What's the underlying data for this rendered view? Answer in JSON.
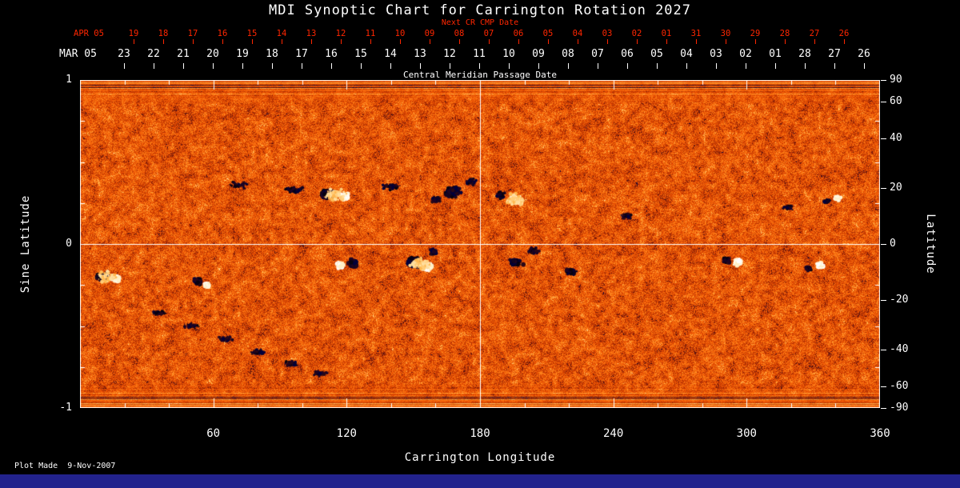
{
  "footer": {
    "plot_made": "Plot Made  9-Nov-2007"
  },
  "chart_data": {
    "type": "heatmap",
    "title": "MDI Synoptic Chart for Carrington Rotation 2027",
    "rotation": 2027,
    "xlabel": "Carrington Longitude",
    "ylabel_left": "Sine Latitude",
    "ylabel_right": "Latitude",
    "xlim": [
      0,
      360
    ],
    "ylim": [
      -1,
      1
    ],
    "x_ticks": [
      60,
      120,
      180,
      240,
      300,
      360
    ],
    "x_minor_step": 20,
    "left_ticks": [
      "1",
      "0",
      "-1"
    ],
    "left_tick_values": [
      1,
      0,
      -1
    ],
    "right_ticks": [
      90,
      60,
      40,
      20,
      0,
      -20,
      -40,
      -60,
      -90
    ],
    "crosshair": {
      "longitude": 180,
      "sine_latitude": 0
    },
    "top_axis_red": {
      "label": "Next CR CMP Date",
      "start_label": "APR 05",
      "tick_labels": [
        "19",
        "18",
        "17",
        "16",
        "15",
        "14",
        "13",
        "12",
        "11",
        "10",
        "09",
        "08",
        "07",
        "06",
        "05",
        "04",
        "03",
        "02",
        "01",
        "31",
        "30",
        "29",
        "28",
        "27",
        "26"
      ],
      "frac_start": 0.067,
      "frac_step": 0.037,
      "color": "#ff2600"
    },
    "top_axis_white": {
      "label": "Central Meridian Passage Date",
      "start_label": "MAR 05",
      "tick_labels": [
        "23",
        "22",
        "21",
        "20",
        "19",
        "18",
        "17",
        "16",
        "15",
        "14",
        "13",
        "12",
        "11",
        "10",
        "09",
        "08",
        "07",
        "06",
        "05",
        "04",
        "03",
        "02",
        "01",
        "28",
        "27",
        "26"
      ],
      "frac_start": 0.055,
      "frac_step": 0.037
    },
    "colors": {
      "background": "#000000",
      "axis": "#ffffff",
      "bottom_bar": "#22228c",
      "base_orange": "#e85a00"
    },
    "palette": {
      "dark": [
        "#08020e",
        "#140420",
        "#00003c",
        "#1e0526",
        "#2a0818"
      ],
      "white": [
        "#ffffff",
        "#fff6dd",
        "#ffefc4"
      ],
      "plage": [
        "#ffcc78",
        "#ffde9e",
        "#ffb850"
      ]
    },
    "noise_seed": 2027,
    "features": [
      {
        "lon": 111,
        "slat": 0.3,
        "t": "dark",
        "sx": 9,
        "sy": 7,
        "n": 150,
        "r": 2.4
      },
      {
        "lon": 119,
        "slat": 0.29,
        "t": "white",
        "sx": 7,
        "sy": 5,
        "n": 90,
        "r": 2.2
      },
      {
        "lon": 115,
        "slat": 0.3,
        "t": "plage",
        "sx": 17,
        "sy": 10,
        "n": 80,
        "r": 1.8
      },
      {
        "lon": 96,
        "slat": 0.33,
        "t": "dark",
        "sx": 14,
        "sy": 5,
        "n": 60,
        "r": 1.5
      },
      {
        "lon": 72,
        "slat": 0.36,
        "t": "dark",
        "sx": 18,
        "sy": 5,
        "n": 50,
        "r": 1.3
      },
      {
        "lon": 140,
        "slat": 0.35,
        "t": "dark",
        "sx": 14,
        "sy": 5,
        "n": 55,
        "r": 1.5
      },
      {
        "lon": 168,
        "slat": 0.32,
        "t": "dark",
        "sx": 12,
        "sy": 8,
        "n": 160,
        "r": 2.2
      },
      {
        "lon": 160,
        "slat": 0.27,
        "t": "dark",
        "sx": 8,
        "sy": 5,
        "n": 60,
        "r": 1.6
      },
      {
        "lon": 176,
        "slat": 0.38,
        "t": "dark",
        "sx": 8,
        "sy": 5,
        "n": 50,
        "r": 1.5
      },
      {
        "lon": 189,
        "slat": 0.3,
        "t": "dark",
        "sx": 6,
        "sy": 5,
        "n": 70,
        "r": 2.0
      },
      {
        "lon": 196,
        "slat": 0.27,
        "t": "white",
        "sx": 8,
        "sy": 6,
        "n": 140,
        "r": 2.6
      },
      {
        "lon": 196,
        "slat": 0.27,
        "t": "plage",
        "sx": 16,
        "sy": 10,
        "n": 70,
        "r": 1.8
      },
      {
        "lon": 341,
        "slat": 0.28,
        "t": "white",
        "sx": 5,
        "sy": 4,
        "n": 45,
        "r": 1.8
      },
      {
        "lon": 336,
        "slat": 0.26,
        "t": "dark",
        "sx": 5,
        "sy": 4,
        "n": 45,
        "r": 1.6
      },
      {
        "lon": 318,
        "slat": 0.22,
        "t": "dark",
        "sx": 9,
        "sy": 4,
        "n": 35,
        "r": 1.2
      },
      {
        "lon": 10,
        "slat": -0.2,
        "t": "dark",
        "sx": 8,
        "sy": 6,
        "n": 140,
        "r": 2.6
      },
      {
        "lon": 16,
        "slat": -0.21,
        "t": "white",
        "sx": 6,
        "sy": 5,
        "n": 85,
        "r": 2.2
      },
      {
        "lon": 12,
        "slat": -0.2,
        "t": "plage",
        "sx": 14,
        "sy": 9,
        "n": 60,
        "r": 1.8
      },
      {
        "lon": 53,
        "slat": -0.23,
        "t": "dark",
        "sx": 6,
        "sy": 5,
        "n": 85,
        "r": 2.2
      },
      {
        "lon": 57,
        "slat": -0.25,
        "t": "white",
        "sx": 5,
        "sy": 4,
        "n": 55,
        "r": 2.0
      },
      {
        "lon": 123,
        "slat": -0.12,
        "t": "dark",
        "sx": 7,
        "sy": 6,
        "n": 110,
        "r": 2.4
      },
      {
        "lon": 117,
        "slat": -0.13,
        "t": "white",
        "sx": 6,
        "sy": 5,
        "n": 70,
        "r": 2.2
      },
      {
        "lon": 150,
        "slat": -0.11,
        "t": "dark",
        "sx": 9,
        "sy": 7,
        "n": 170,
        "r": 2.8
      },
      {
        "lon": 156,
        "slat": -0.14,
        "t": "white",
        "sx": 8,
        "sy": 6,
        "n": 130,
        "r": 2.6
      },
      {
        "lon": 153,
        "slat": -0.12,
        "t": "plage",
        "sx": 16,
        "sy": 10,
        "n": 80,
        "r": 1.8
      },
      {
        "lon": 159,
        "slat": -0.05,
        "t": "dark",
        "sx": 6,
        "sy": 5,
        "n": 60,
        "r": 1.8
      },
      {
        "lon": 196,
        "slat": -0.11,
        "t": "dark",
        "sx": 10,
        "sy": 5,
        "n": 110,
        "r": 2.2
      },
      {
        "lon": 204,
        "slat": -0.04,
        "t": "dark",
        "sx": 8,
        "sy": 5,
        "n": 60,
        "r": 1.6
      },
      {
        "lon": 221,
        "slat": -0.17,
        "t": "dark",
        "sx": 9,
        "sy": 5,
        "n": 70,
        "r": 1.8
      },
      {
        "lon": 246,
        "slat": 0.17,
        "t": "dark",
        "sx": 10,
        "sy": 5,
        "n": 45,
        "r": 1.3
      },
      {
        "lon": 296,
        "slat": -0.11,
        "t": "white",
        "sx": 6,
        "sy": 5,
        "n": 70,
        "r": 2.2
      },
      {
        "lon": 291,
        "slat": -0.1,
        "t": "dark",
        "sx": 6,
        "sy": 5,
        "n": 70,
        "r": 2.0
      },
      {
        "lon": 333,
        "slat": -0.13,
        "t": "white",
        "sx": 6,
        "sy": 5,
        "n": 60,
        "r": 2.0
      },
      {
        "lon": 328,
        "slat": -0.15,
        "t": "dark",
        "sx": 5,
        "sy": 4,
        "n": 50,
        "r": 1.8
      },
      {
        "lon": 35,
        "slat": -0.42,
        "t": "dark",
        "sx": 12,
        "sy": 4,
        "n": 45,
        "r": 1.4
      },
      {
        "lon": 50,
        "slat": -0.5,
        "t": "dark",
        "sx": 12,
        "sy": 4,
        "n": 45,
        "r": 1.4
      },
      {
        "lon": 65,
        "slat": -0.58,
        "t": "dark",
        "sx": 12,
        "sy": 4,
        "n": 45,
        "r": 1.4
      },
      {
        "lon": 80,
        "slat": -0.66,
        "t": "dark",
        "sx": 12,
        "sy": 4,
        "n": 45,
        "r": 1.4
      },
      {
        "lon": 95,
        "slat": -0.73,
        "t": "dark",
        "sx": 12,
        "sy": 4,
        "n": 45,
        "r": 1.4
      },
      {
        "lon": 108,
        "slat": -0.79,
        "t": "dark",
        "sx": 12,
        "sy": 4,
        "n": 40,
        "r": 1.3
      }
    ]
  }
}
